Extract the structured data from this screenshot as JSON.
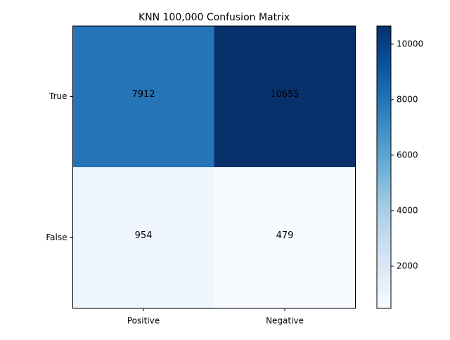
{
  "chart_data": {
    "type": "heatmap",
    "title": "KNN 100,000 Confusion Matrix",
    "x_categories": [
      "Positive",
      "Negative"
    ],
    "y_categories": [
      "True",
      "False"
    ],
    "values": [
      [
        7912,
        10655
      ],
      [
        954,
        479
      ]
    ],
    "cell_colors": [
      [
        "#2474b7",
        "#08306b"
      ],
      [
        "#eef5fc",
        "#f7fbff"
      ]
    ],
    "colorbar": {
      "min": 479,
      "max": 10655,
      "ticks": [
        2000,
        4000,
        6000,
        8000,
        10000
      ],
      "colormap": "Blues"
    },
    "grid": false
  }
}
